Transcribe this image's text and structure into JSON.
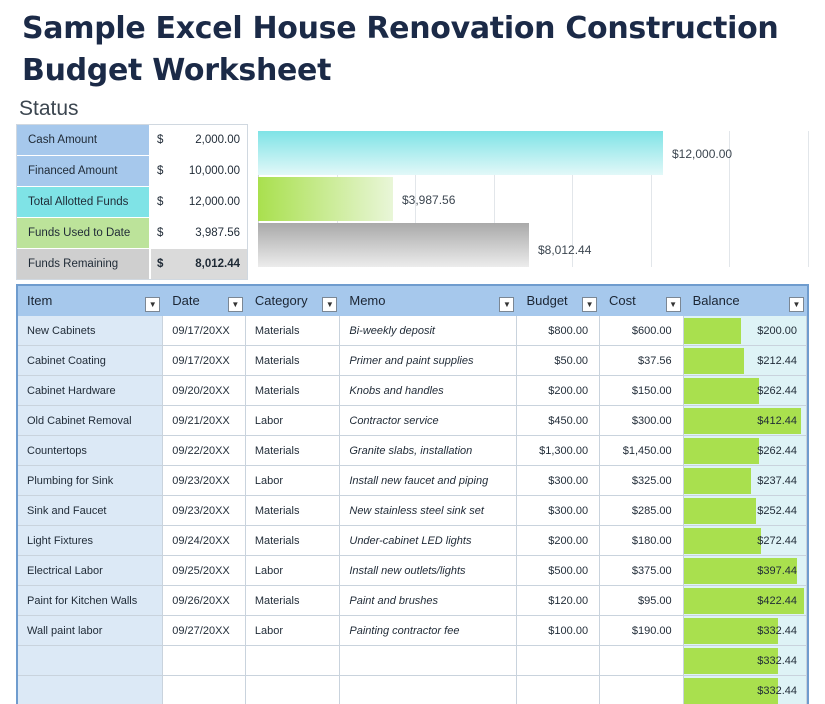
{
  "page": {
    "title": "Sample Excel House Renovation Construction Budget Worksheet",
    "status_label": "Status"
  },
  "status": [
    {
      "label": "Cash Amount",
      "currency": "$",
      "value": "2,000.00"
    },
    {
      "label": "Financed Amount",
      "currency": "$",
      "value": "10,000.00"
    },
    {
      "label": "Total Allotted Funds",
      "currency": "$",
      "value": "12,000.00"
    },
    {
      "label": "Funds Used to Date",
      "currency": "$",
      "value": "3,987.56"
    },
    {
      "label": "Funds Remaining",
      "currency": "$",
      "value": "8,012.44"
    }
  ],
  "chart_data": {
    "type": "bar",
    "orientation": "horizontal",
    "categories": [
      "Total Allotted Funds",
      "Funds Used to Date",
      "Funds Remaining"
    ],
    "values": [
      12000.0,
      3987.56,
      8012.44
    ],
    "data_labels": [
      "$12,000.00",
      "$3,987.56",
      "$8,012.44"
    ],
    "colors": [
      "#7fe3e6",
      "#a9e04e",
      "#b8b8b8"
    ],
    "xlim": [
      0,
      14000
    ],
    "grid": true
  },
  "table": {
    "columns": [
      "Item",
      "Date",
      "Category",
      "Memo",
      "Budget",
      "Cost",
      "Balance"
    ],
    "rows": [
      {
        "item": "New Cabinets",
        "date": "09/17/20XX",
        "category": "Materials",
        "memo": "Bi-weekly deposit",
        "budget": "$800.00",
        "cost": "$600.00",
        "balance": "$200.00",
        "balance_value": 200.0
      },
      {
        "item": "Cabinet Coating",
        "date": "09/17/20XX",
        "category": "Materials",
        "memo": "Primer and paint supplies",
        "budget": "$50.00",
        "cost": "$37.56",
        "balance": "$212.44",
        "balance_value": 212.44
      },
      {
        "item": "Cabinet Hardware",
        "date": "09/20/20XX",
        "category": "Materials",
        "memo": "Knobs and handles",
        "budget": "$200.00",
        "cost": "$150.00",
        "balance": "$262.44",
        "balance_value": 262.44
      },
      {
        "item": "Old Cabinet Removal",
        "date": "09/21/20XX",
        "category": "Labor",
        "memo": "Contractor service",
        "budget": "$450.00",
        "cost": "$300.00",
        "balance": "$412.44",
        "balance_value": 412.44
      },
      {
        "item": "Countertops",
        "date": "09/22/20XX",
        "category": "Materials",
        "memo": "Granite slabs, installation",
        "budget": "$1,300.00",
        "cost": "$1,450.00",
        "balance": "$262.44",
        "balance_value": 262.44
      },
      {
        "item": "Plumbing for Sink",
        "date": "09/23/20XX",
        "category": "Labor",
        "memo": "Install new faucet and piping",
        "budget": "$300.00",
        "cost": "$325.00",
        "balance": "$237.44",
        "balance_value": 237.44
      },
      {
        "item": "Sink and Faucet",
        "date": "09/23/20XX",
        "category": "Materials",
        "memo": "New stainless steel sink set",
        "budget": "$300.00",
        "cost": "$285.00",
        "balance": "$252.44",
        "balance_value": 252.44
      },
      {
        "item": "Light Fixtures",
        "date": "09/24/20XX",
        "category": "Materials",
        "memo": "Under-cabinet LED lights",
        "budget": "$200.00",
        "cost": "$180.00",
        "balance": "$272.44",
        "balance_value": 272.44
      },
      {
        "item": "Electrical Labor",
        "date": "09/25/20XX",
        "category": "Labor",
        "memo": "Install new outlets/lights",
        "budget": "$500.00",
        "cost": "$375.00",
        "balance": "$397.44",
        "balance_value": 397.44
      },
      {
        "item": "Paint for Kitchen Walls",
        "date": "09/26/20XX",
        "category": "Materials",
        "memo": "Paint and brushes",
        "budget": "$120.00",
        "cost": "$95.00",
        "balance": "$422.44",
        "balance_value": 422.44
      },
      {
        "item": "Wall paint labor",
        "date": "09/27/20XX",
        "category": "Labor",
        "memo": "Painting contractor fee",
        "budget": "$100.00",
        "cost": "$190.00",
        "balance": "$332.44",
        "balance_value": 332.44
      },
      {
        "item": "",
        "date": "",
        "category": "",
        "memo": "",
        "budget": "",
        "cost": "",
        "balance": "$332.44",
        "balance_value": 332.44
      },
      {
        "item": "",
        "date": "",
        "category": "",
        "memo": "",
        "budget": "",
        "cost": "",
        "balance": "$332.44",
        "balance_value": 332.44
      }
    ],
    "balance_max": 422.44
  }
}
